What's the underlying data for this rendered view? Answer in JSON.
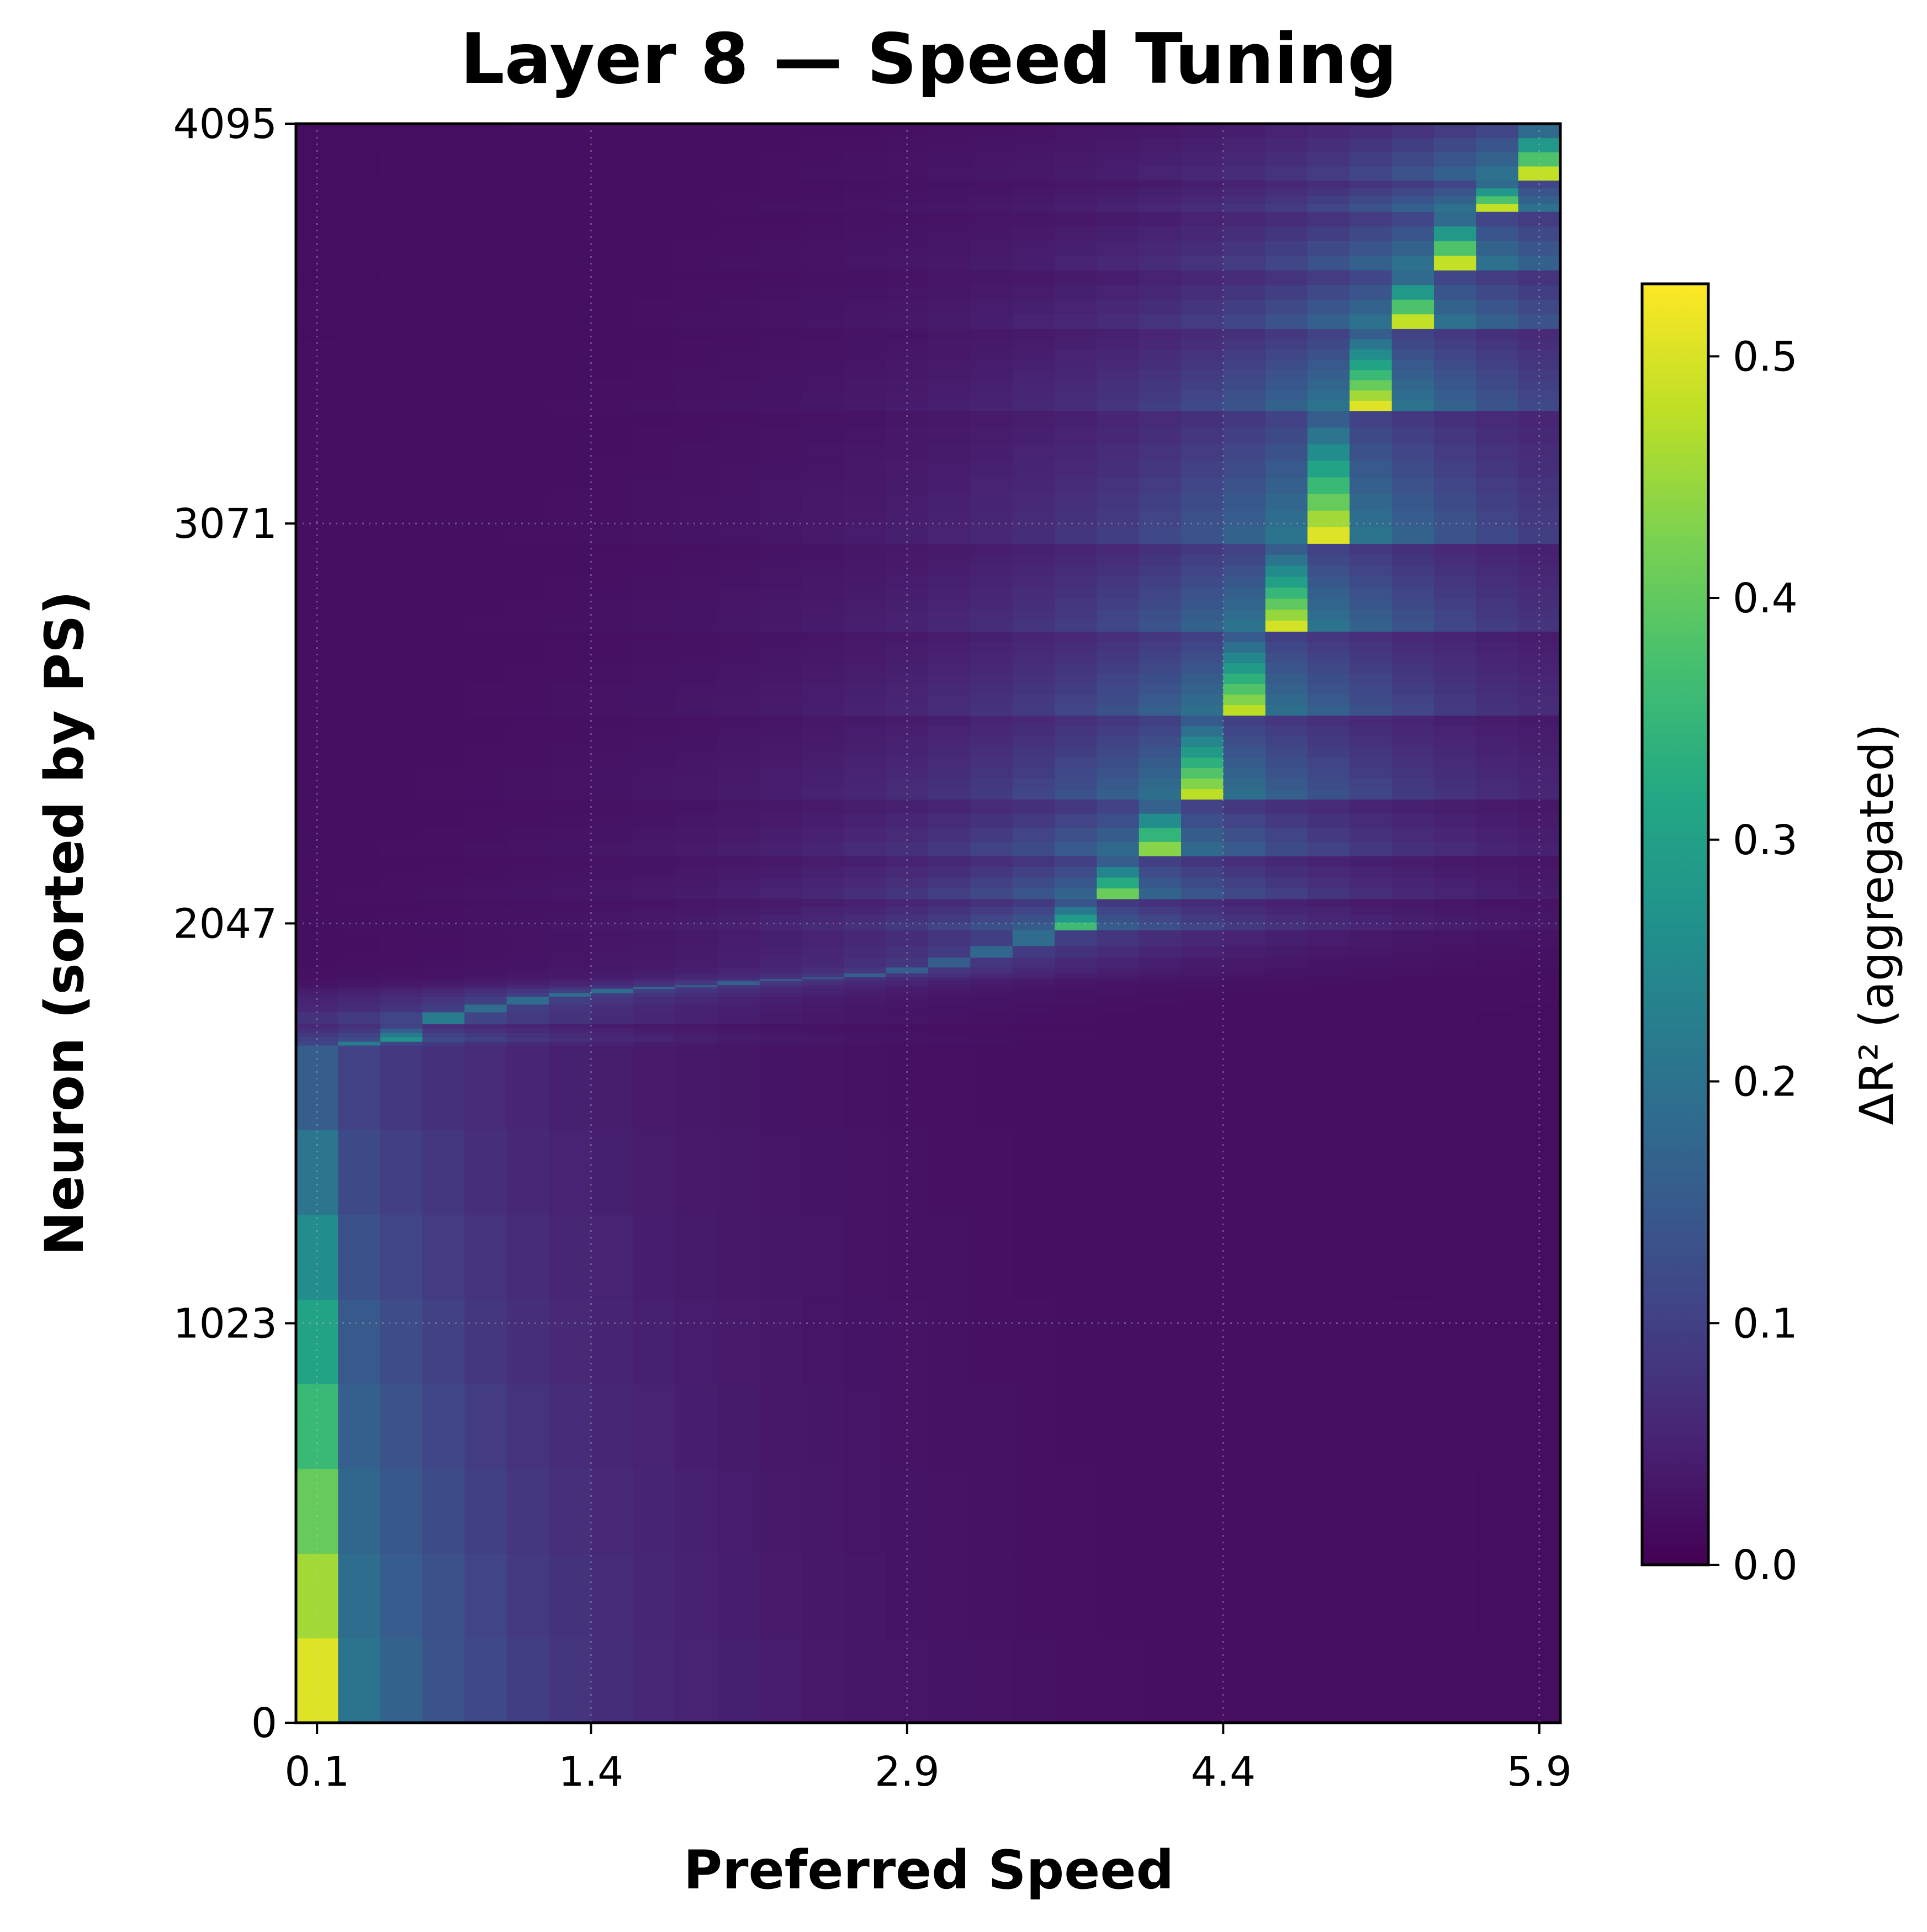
{
  "chart_data": {
    "type": "heatmap",
    "title": "Layer 8 — Speed Tuning",
    "xlabel": "Preferred Speed",
    "ylabel": "Neuron (sorted by PS)",
    "x_columns": [
      0.1,
      0.3,
      0.5,
      0.7,
      0.9,
      1.1,
      1.3,
      1.5,
      1.7,
      1.9,
      2.1,
      2.3,
      2.5,
      2.7,
      2.9,
      3.1,
      3.3,
      3.5,
      3.7,
      3.9,
      4.1,
      4.3,
      4.5,
      4.7,
      4.9,
      5.1,
      5.3,
      5.5,
      5.7,
      5.9
    ],
    "xlim": [
      0.0,
      6.0
    ],
    "ylim": [
      0,
      4095
    ],
    "xticks": [
      0.1,
      1.4,
      2.9,
      4.4,
      5.9
    ],
    "xtick_labels": [
      "0.1",
      "1.4",
      "2.9",
      "4.4",
      "5.9"
    ],
    "yticks": [
      0,
      1023,
      2047,
      3071,
      4095
    ],
    "ytick_labels": [
      "0",
      "1023",
      "2047",
      "3071",
      "4095"
    ],
    "neuron_groups": [
      {
        "preferred_speed": 0.1,
        "rows": [
          0,
          1735
        ],
        "peak": 0.53
      },
      {
        "preferred_speed": 0.3,
        "rows": [
          1735,
          1745
        ],
        "peak": 0.35
      },
      {
        "preferred_speed": 0.5,
        "rows": [
          1745,
          1790
        ],
        "peak": 0.3
      },
      {
        "preferred_speed": 0.7,
        "rows": [
          1790,
          1820
        ],
        "peak": 0.35
      },
      {
        "preferred_speed": 0.9,
        "rows": [
          1820,
          1840
        ],
        "peak": 0.3
      },
      {
        "preferred_speed": 1.1,
        "rows": [
          1840,
          1860
        ],
        "peak": 0.3
      },
      {
        "preferred_speed": 1.3,
        "rows": [
          1860,
          1870
        ],
        "peak": 0.3
      },
      {
        "preferred_speed": 1.5,
        "rows": [
          1870,
          1880
        ],
        "peak": 0.3
      },
      {
        "preferred_speed": 1.7,
        "rows": [
          1880,
          1885
        ],
        "peak": 0.28
      },
      {
        "preferred_speed": 1.9,
        "rows": [
          1885,
          1890
        ],
        "peak": 0.25
      },
      {
        "preferred_speed": 2.1,
        "rows": [
          1890,
          1900
        ],
        "peak": 0.25
      },
      {
        "preferred_speed": 2.3,
        "rows": [
          1900,
          1905
        ],
        "peak": 0.25
      },
      {
        "preferred_speed": 2.5,
        "rows": [
          1905,
          1910
        ],
        "peak": 0.22
      },
      {
        "preferred_speed": 2.7,
        "rows": [
          1910,
          1920
        ],
        "peak": 0.25
      },
      {
        "preferred_speed": 2.9,
        "rows": [
          1920,
          1935
        ],
        "peak": 0.25
      },
      {
        "preferred_speed": 3.1,
        "rows": [
          1935,
          1960
        ],
        "peak": 0.25
      },
      {
        "preferred_speed": 3.3,
        "rows": [
          1960,
          1990
        ],
        "peak": 0.28
      },
      {
        "preferred_speed": 3.5,
        "rows": [
          1990,
          2030
        ],
        "peak": 0.3
      },
      {
        "preferred_speed": 3.7,
        "rows": [
          2030,
          2110
        ],
        "peak": 0.4
      },
      {
        "preferred_speed": 3.9,
        "rows": [
          2110,
          2220
        ],
        "peak": 0.45
      },
      {
        "preferred_speed": 4.1,
        "rows": [
          2220,
          2365
        ],
        "peak": 0.48
      },
      {
        "preferred_speed": 4.3,
        "rows": [
          2365,
          2580
        ],
        "peak": 0.5
      },
      {
        "preferred_speed": 4.5,
        "rows": [
          2580,
          2795
        ],
        "peak": 0.5
      },
      {
        "preferred_speed": 4.7,
        "rows": [
          2795,
          3020
        ],
        "peak": 0.52
      },
      {
        "preferred_speed": 4.9,
        "rows": [
          3020,
          3360
        ],
        "peak": 0.53
      },
      {
        "preferred_speed": 5.1,
        "rows": [
          3360,
          3570
        ],
        "peak": 0.53
      },
      {
        "preferred_speed": 5.3,
        "rows": [
          3570,
          3720
        ],
        "peak": 0.53
      },
      {
        "preferred_speed": 5.5,
        "rows": [
          3720,
          3870
        ],
        "peak": 0.53
      },
      {
        "preferred_speed": 5.7,
        "rows": [
          3870,
          3950
        ],
        "peak": 0.53
      },
      {
        "preferred_speed": 5.9,
        "rows": [
          3950,
          4095
        ],
        "peak": 0.53
      }
    ],
    "colorbar": {
      "label": "ΔR² (aggregated)",
      "colormap": "viridis",
      "vmin": 0.0,
      "vmax": 0.53,
      "ticks": [
        0.0,
        0.1,
        0.2,
        0.3,
        0.4,
        0.5
      ],
      "tick_labels": [
        "0.0",
        "0.1",
        "0.2",
        "0.3",
        "0.4",
        "0.5"
      ]
    },
    "grid": true,
    "grid_style": "dotted"
  }
}
